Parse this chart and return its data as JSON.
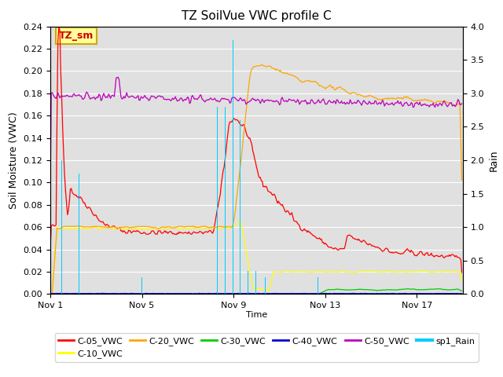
{
  "title": "TZ SoilVue VWC profile C",
  "xlabel": "Time",
  "ylabel_left": "Soil Moisture (VWC)",
  "ylabel_right": "Rain",
  "ylim_left": [
    0,
    0.24
  ],
  "ylim_right": [
    0.0,
    4.0
  ],
  "yticks_left": [
    0.0,
    0.02,
    0.04,
    0.06,
    0.08,
    0.1,
    0.12,
    0.14,
    0.16,
    0.18,
    0.2,
    0.22,
    0.24
  ],
  "yticks_right": [
    0.0,
    0.5,
    1.0,
    1.5,
    2.0,
    2.5,
    3.0,
    3.5,
    4.0
  ],
  "xtick_labels": [
    "Nov 1",
    "Nov 5",
    "Nov 9",
    "Nov 13",
    "Nov 17"
  ],
  "annotation_text": "TZ_sm",
  "annotation_bg": "#FFFF99",
  "annotation_border": "#CCAA00",
  "bg_color": "#E0E0E0",
  "colors": {
    "C-05_VWC": "#FF0000",
    "C-10_VWC": "#FFFF00",
    "C-20_VWC": "#FFA500",
    "C-30_VWC": "#00CC00",
    "C-40_VWC": "#0000CC",
    "C-50_VWC": "#BB00BB",
    "sp1_Rain": "#00CCFF"
  },
  "total_hours": 432,
  "rain_events": [
    {
      "hour": 12,
      "amount": 2.0
    },
    {
      "hour": 30,
      "amount": 1.8
    },
    {
      "hour": 96,
      "amount": 0.25
    },
    {
      "hour": 175,
      "amount": 2.8
    },
    {
      "hour": 183,
      "amount": 2.8
    },
    {
      "hour": 191,
      "amount": 3.8
    },
    {
      "hour": 199,
      "amount": 2.6
    },
    {
      "hour": 207,
      "amount": 0.35
    },
    {
      "hour": 215,
      "amount": 0.35
    },
    {
      "hour": 225,
      "amount": 0.25
    },
    {
      "hour": 280,
      "amount": 0.25
    }
  ]
}
